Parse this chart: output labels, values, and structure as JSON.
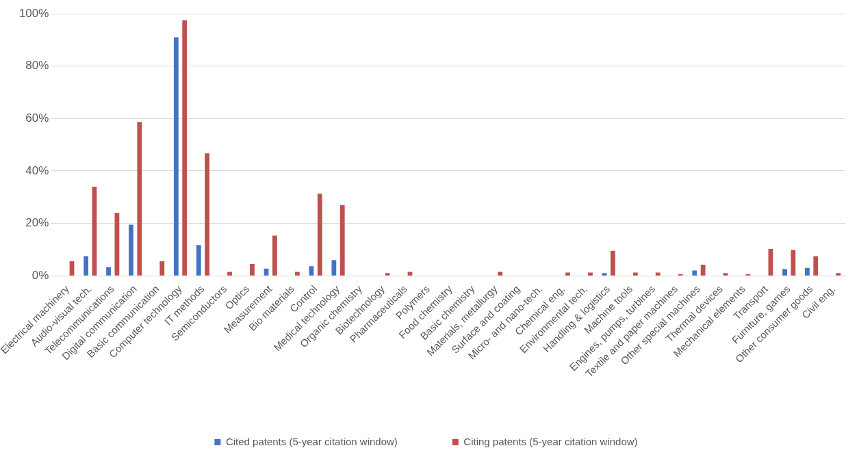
{
  "chart_data": {
    "type": "bar",
    "categories": [
      "Electrical machinery",
      "Audio-visual tech.",
      "Telecommunications",
      "Digital communication",
      "Basic communication",
      "Computer technology",
      "IT methods",
      "Semiconductors",
      "Optics",
      "Measurement",
      "Bio materials",
      "Control",
      "Medical technology",
      "Organic chemistry",
      "Biotechnology",
      "Pharmaceuticals",
      "Polymers",
      "Food chemistry",
      "Basic chemistry",
      "Materials, metallurgy",
      "Surface and coating",
      "Micro- and nano-tech.",
      "Chemical eng.",
      "Environmental tech.",
      "Handling & logistics",
      "Machine tools",
      "Engines, pumps, turbines",
      "Textile and paper machines",
      "Other special machines",
      "Thermal devices",
      "Mechanical elements",
      "Transport",
      "Furniture, games",
      "Other consumer goods",
      "Civil eng."
    ],
    "series": [
      {
        "name": "Cited patents (5-year citation window)",
        "color": "#4472c4",
        "values": [
          0,
          7.5,
          3.3,
          19.5,
          0,
          91,
          11.7,
          0,
          0,
          2.7,
          0,
          3.6,
          6,
          0,
          0,
          0,
          0,
          0,
          0,
          0,
          0,
          0,
          0,
          0,
          1,
          0,
          0,
          0,
          2,
          0,
          0,
          0,
          2.6,
          3,
          0
        ]
      },
      {
        "name": "Citing patents (5-year citation window)",
        "color": "#c0504d",
        "values": [
          5.5,
          34,
          24,
          58.7,
          5.5,
          97.5,
          46.7,
          1.5,
          4.5,
          15.3,
          1.5,
          31.3,
          27,
          0,
          1,
          1.5,
          0,
          0,
          0,
          1.5,
          0,
          0,
          1.2,
          1.2,
          9.5,
          1.2,
          1.2,
          0.6,
          4.2,
          1,
          0.6,
          10.2,
          9.8,
          7.5,
          1
        ]
      }
    ],
    "ylim": [
      0,
      100
    ],
    "yticks": [
      {
        "value": 0,
        "label": "0%"
      },
      {
        "value": 20,
        "label": "20%"
      },
      {
        "value": 40,
        "label": "40%"
      },
      {
        "value": 60,
        "label": "60%"
      },
      {
        "value": 80,
        "label": "80%"
      },
      {
        "value": 100,
        "label": "100%"
      }
    ],
    "grid": "y",
    "legend": "bottom"
  }
}
